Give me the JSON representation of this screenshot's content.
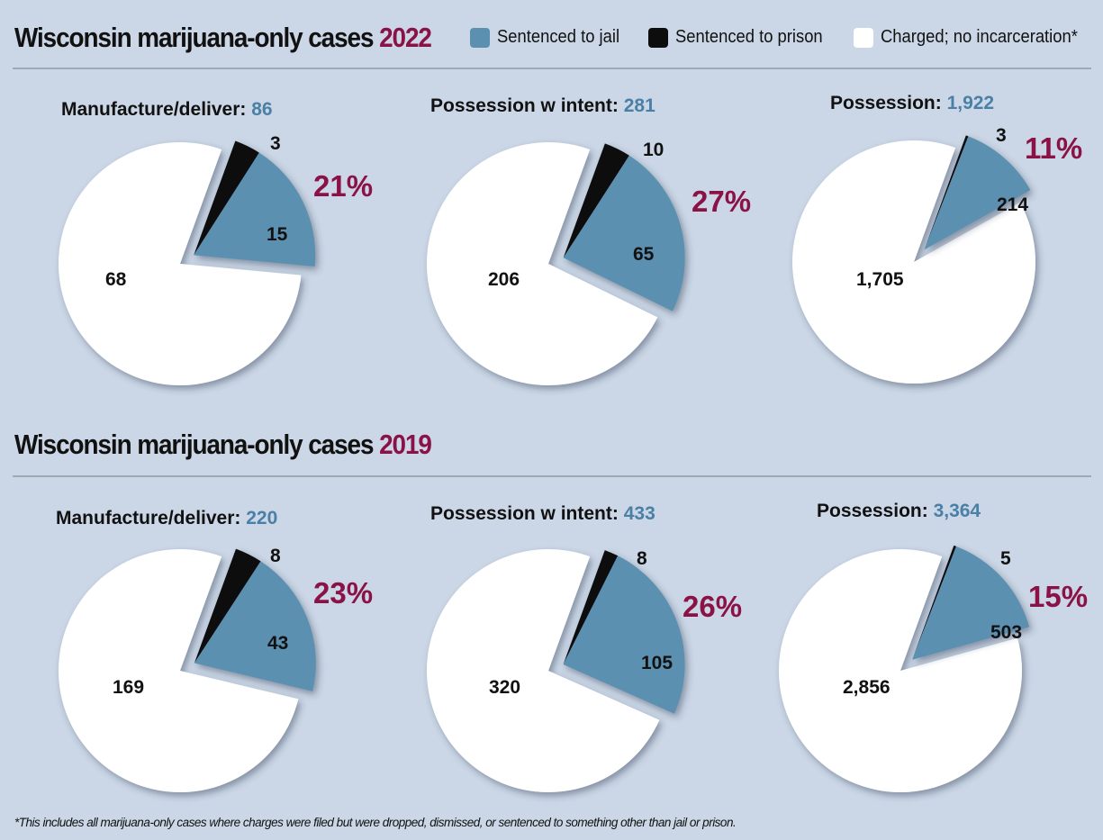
{
  "colors": {
    "jail": "#5b90b1",
    "prison": "#0d0d0d",
    "charged": "#ffffff",
    "title_year": "#8a1246",
    "percent": "#8a1246",
    "total": "#4a7fa6"
  },
  "legend": [
    {
      "key": "jail",
      "label": "Sentenced to jail"
    },
    {
      "key": "prison",
      "label": "Sentenced to prison"
    },
    {
      "key": "charged",
      "label": "Charged; no incarceration*"
    }
  ],
  "sections": [
    {
      "title": "Wisconsin marijuana-only cases ",
      "year": "2022"
    },
    {
      "title": "Wisconsin marijuana-only cases ",
      "year": "2019"
    }
  ],
  "footnote": "*This  includes all marijuana-only cases where charges were filed but were dropped, dismissed, or sentenced to something other than jail or prison.",
  "chart_data": [
    {
      "type": "pie",
      "year": "2022",
      "title": "Manufacture/deliver: ",
      "total": "86",
      "percent": "21%",
      "slices": [
        {
          "name": "Sentenced to jail",
          "value": 15,
          "label": "15"
        },
        {
          "name": "Sentenced to prison",
          "value": 3,
          "label": "3"
        },
        {
          "name": "Charged; no incarceration*",
          "value": 68,
          "label": "68"
        }
      ]
    },
    {
      "type": "pie",
      "year": "2022",
      "title": "Possession w intent: ",
      "total": "281",
      "percent": "27%",
      "slices": [
        {
          "name": "Sentenced to jail",
          "value": 65,
          "label": "65"
        },
        {
          "name": "Sentenced to prison",
          "value": 10,
          "label": "10"
        },
        {
          "name": "Charged; no incarceration*",
          "value": 206,
          "label": "206"
        }
      ]
    },
    {
      "type": "pie",
      "year": "2022",
      "title": "Possession: ",
      "total": "1,922",
      "percent": "11%",
      "slices": [
        {
          "name": "Sentenced to jail",
          "value": 214,
          "label": "214"
        },
        {
          "name": "Sentenced to prison",
          "value": 3,
          "label": "3"
        },
        {
          "name": "Charged; no incarceration*",
          "value": 1705,
          "label": "1,705"
        }
      ]
    },
    {
      "type": "pie",
      "year": "2019",
      "title": "Manufacture/deliver: ",
      "total": "220",
      "percent": "23%",
      "slices": [
        {
          "name": "Sentenced to jail",
          "value": 43,
          "label": "43"
        },
        {
          "name": "Sentenced to prison",
          "value": 8,
          "label": "8"
        },
        {
          "name": "Charged; no incarceration*",
          "value": 169,
          "label": "169"
        }
      ]
    },
    {
      "type": "pie",
      "year": "2019",
      "title": "Possession w intent: ",
      "total": "433",
      "percent": "26%",
      "slices": [
        {
          "name": "Sentenced to jail",
          "value": 105,
          "label": "105"
        },
        {
          "name": "Sentenced to prison",
          "value": 8,
          "label": "8"
        },
        {
          "name": "Charged; no incarceration*",
          "value": 320,
          "label": "320"
        }
      ]
    },
    {
      "type": "pie",
      "year": "2019",
      "title": "Possession: ",
      "total": "3,364",
      "percent": "15%",
      "slices": [
        {
          "name": "Sentenced to jail",
          "value": 503,
          "label": "503"
        },
        {
          "name": "Sentenced to prison",
          "value": 5,
          "label": "5"
        },
        {
          "name": "Charged; no incarceration*",
          "value": 2856,
          "label": "2,856"
        }
      ]
    }
  ]
}
